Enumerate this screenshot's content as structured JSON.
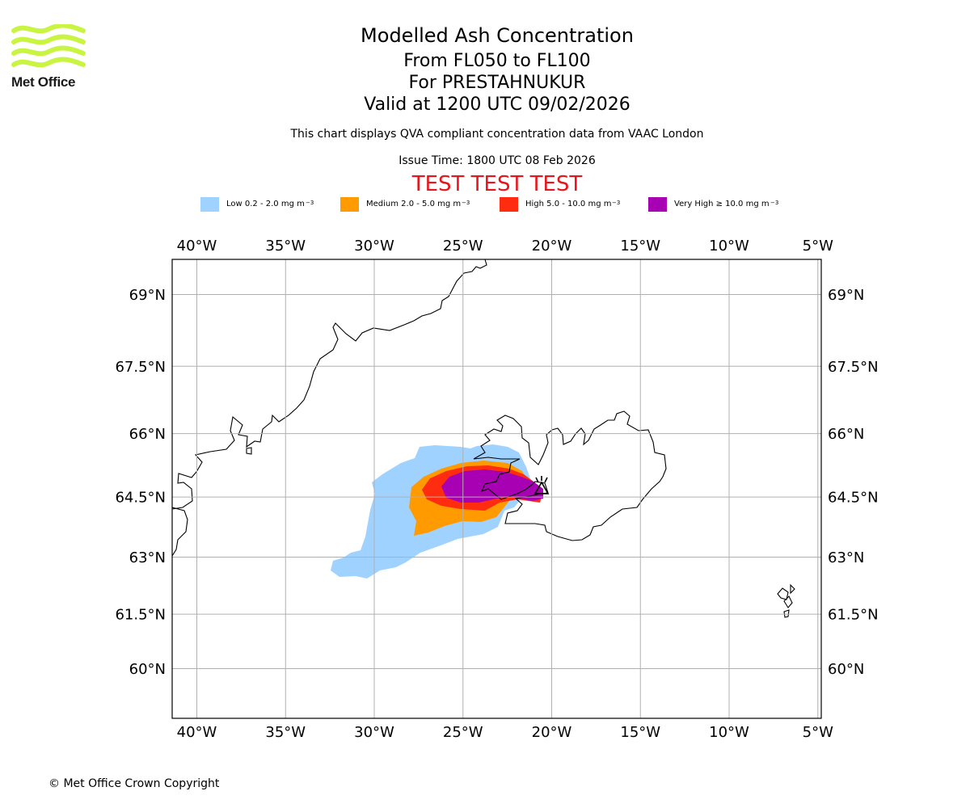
{
  "branding": {
    "name": "Met Office",
    "copyright": "© Met Office Crown Copyright"
  },
  "header": {
    "title": "Modelled Ash Concentration",
    "levels": "From FL050 to FL100",
    "volcano": "For PRESTAHNUKUR",
    "valid": "Valid at 1200 UTC 09/02/2026",
    "compliance": "This chart displays QVA compliant concentration data from VAAC London",
    "issue": "Issue Time: 1800 UTC 08 Feb 2026",
    "test_banner": "TEST TEST TEST"
  },
  "legend": [
    {
      "label": "Low 0.2 - 2.0 mg m",
      "exp": "−3",
      "color": "#a0d2ff"
    },
    {
      "label": "Medium 2.0 - 5.0 mg m",
      "exp": "−3",
      "color": "#ff9a00"
    },
    {
      "label": "High 5.0 - 10.0 mg m",
      "exp": "−3",
      "color": "#ff2c0f"
    },
    {
      "label": "Very High ≥ 10.0 mg m",
      "exp": "−3",
      "color": "#a800b3"
    }
  ],
  "map": {
    "lon_ticks": [
      "40°W",
      "35°W",
      "30°W",
      "25°W",
      "20°W",
      "15°W",
      "10°W",
      "5°W"
    ],
    "lon_values": [
      -40,
      -35,
      -30,
      -25,
      -20,
      -15,
      -10,
      -5
    ],
    "lat_ticks": [
      "69°N",
      "67.5°N",
      "66°N",
      "64.5°N",
      "63°N",
      "61.5°N",
      "60°N"
    ],
    "lat_values": [
      69,
      67.5,
      66,
      64.5,
      63,
      61.5,
      60
    ],
    "extent": {
      "lon": [
        -41.4,
        -4.8
      ],
      "lat": [
        58.9,
        69.8
      ]
    },
    "volcano_location": {
      "lon": -20.6,
      "lat": 64.6
    }
  }
}
